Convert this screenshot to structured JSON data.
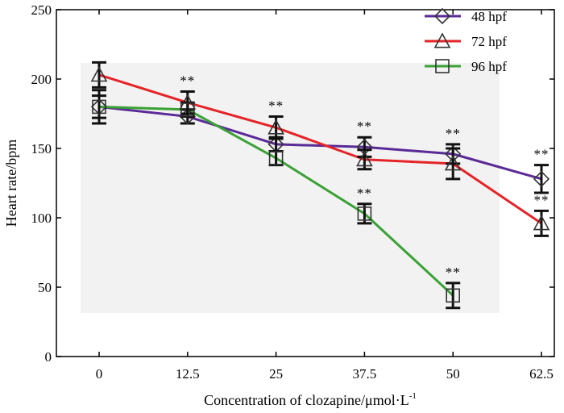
{
  "chart_data": {
    "type": "line",
    "xlabel": "Concentration of clozapine/μmol·L",
    "xlabel_sup": "-1",
    "ylabel": "Heart rate/bpm",
    "ylim": [
      0,
      250
    ],
    "yticks": [
      0,
      50,
      100,
      150,
      200,
      250
    ],
    "categories": [
      "0",
      "12.5",
      "25",
      "37.5",
      "50",
      "62.5"
    ],
    "legend_position": "top-right",
    "series": [
      {
        "name": "48 hpf",
        "color": "#5a2a97",
        "marker": "diamond",
        "values": [
          180,
          173,
          153,
          151,
          146,
          128
        ],
        "errors": [
          12,
          5,
          5,
          7,
          7,
          10
        ],
        "significance": [
          "",
          "",
          "",
          "**",
          "**",
          "**"
        ]
      },
      {
        "name": "72 hpf",
        "color": "#e52428",
        "marker": "triangle",
        "values": [
          203,
          183,
          165,
          142,
          139,
          96
        ],
        "errors": [
          9,
          8,
          8,
          7,
          11,
          9
        ],
        "significance": [
          "",
          "**",
          "**",
          "",
          "",
          "**"
        ]
      },
      {
        "name": "96 hpf",
        "color": "#3aa135",
        "marker": "square",
        "values": [
          180,
          178,
          143,
          103,
          44,
          null
        ],
        "errors": [
          8,
          5,
          5,
          7,
          9,
          null
        ],
        "significance": [
          "",
          "",
          "",
          "**",
          "**",
          ""
        ]
      }
    ]
  }
}
